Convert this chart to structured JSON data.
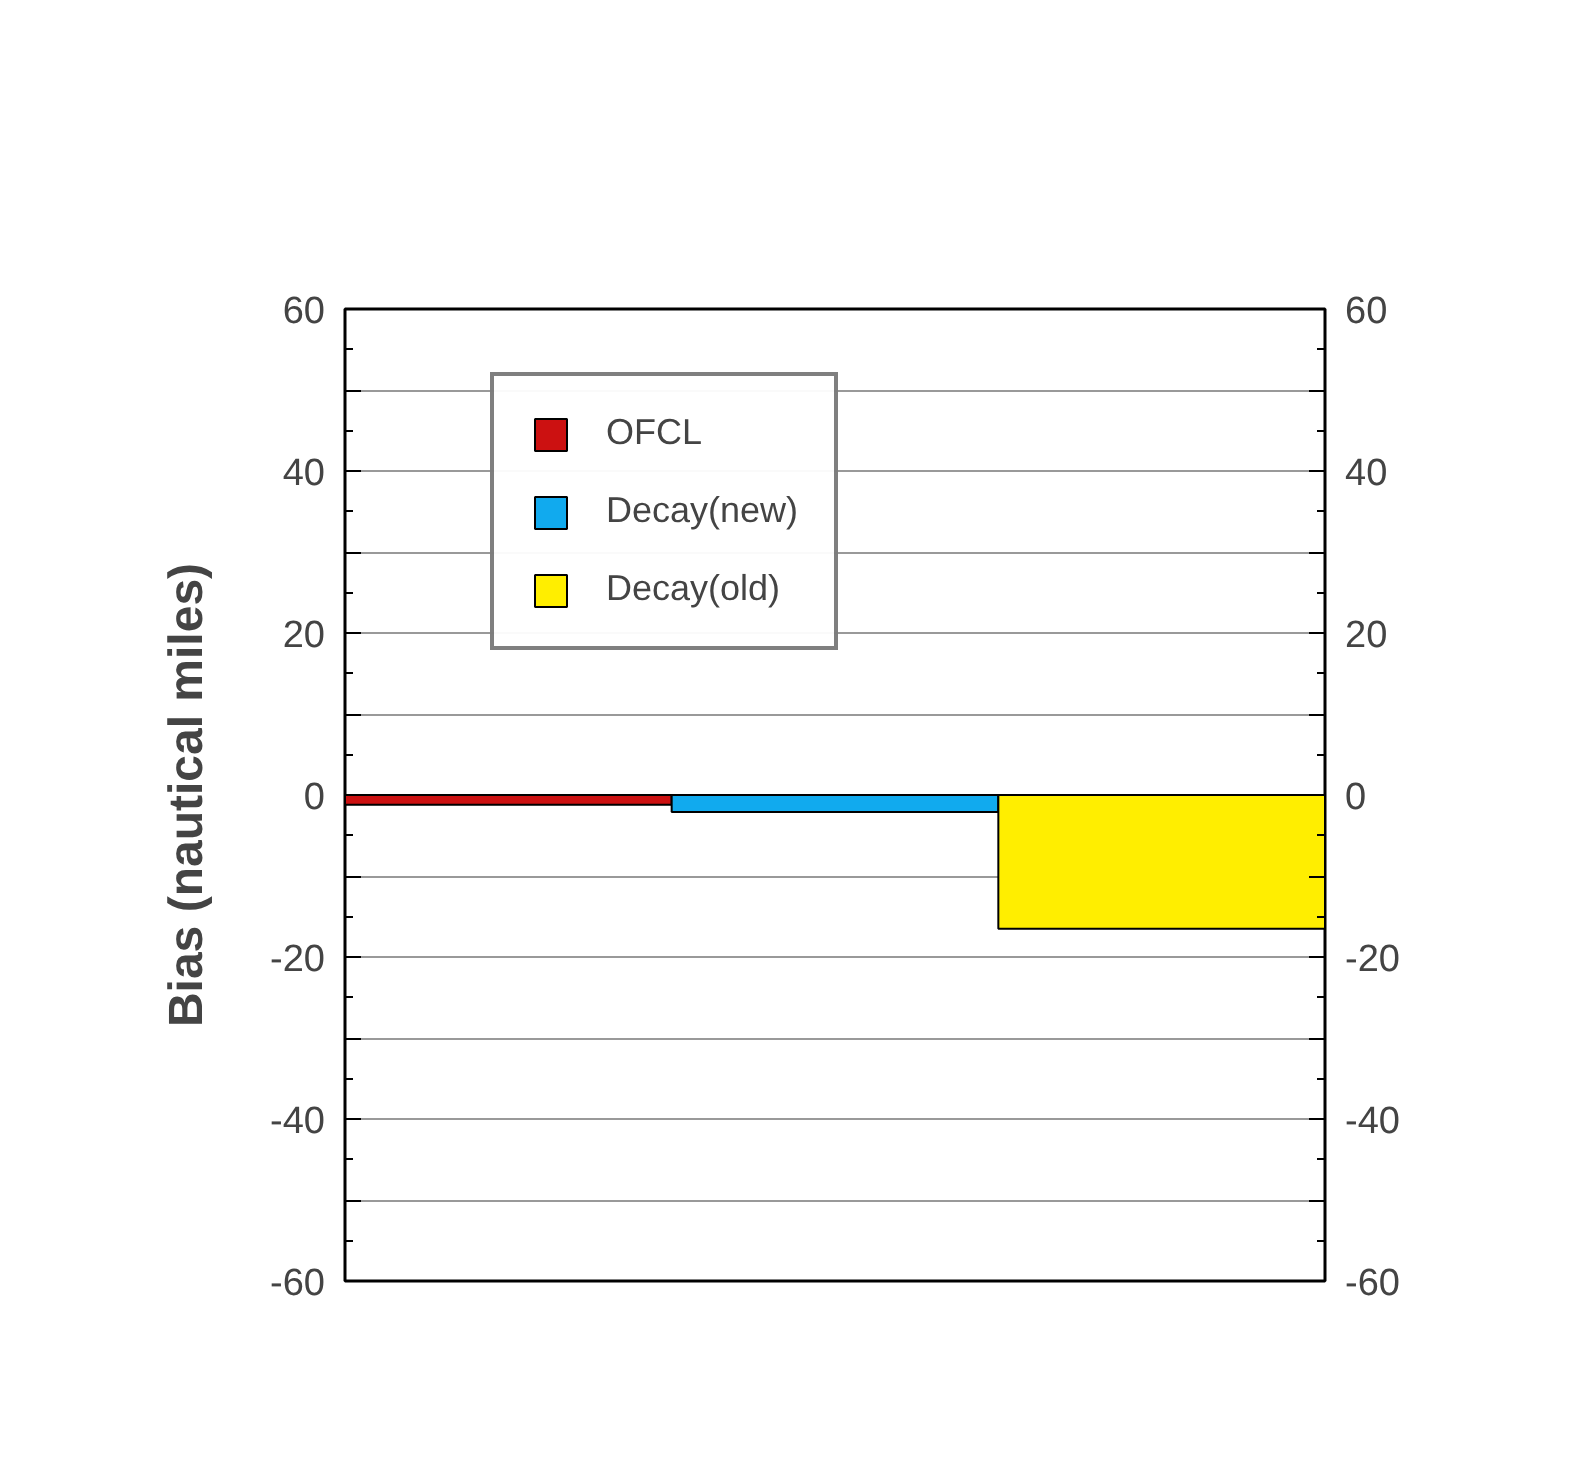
{
  "chart_data": {
    "type": "bar",
    "ylabel": "Bias (nautical miles)",
    "categories": [
      null,
      null,
      null
    ],
    "series": [
      {
        "name": "OFCL",
        "color": "#cc1111",
        "values": [
          -1.2,
          null,
          null
        ]
      },
      {
        "name": "Decay(new)",
        "color": "#11aaee",
        "values": [
          null,
          -2.1,
          null
        ]
      },
      {
        "name": "Decay(old)",
        "color": "#ffee00",
        "values": [
          null,
          null,
          -16.5
        ]
      }
    ],
    "ylim": [
      -60,
      60
    ],
    "yticks": [
      -60,
      {
        "value": -50,
        "label": null
      },
      -40,
      {
        "value": -30,
        "label": null
      },
      -20,
      {
        "value": -10,
        "label": null
      },
      0,
      {
        "value": 10,
        "label": null
      },
      20,
      {
        "value": 30,
        "label": null
      },
      40,
      {
        "value": 50,
        "label": null
      },
      60
    ],
    "y2lim": [
      -60,
      60
    ],
    "y2ticks": [
      -60,
      {
        "value": -50,
        "label": null
      },
      -40,
      {
        "value": -30,
        "label": null
      },
      -20,
      {
        "value": -10,
        "label": null
      },
      0,
      {
        "value": 10,
        "label": null
      },
      20,
      {
        "value": 30,
        "label": null
      },
      40,
      {
        "value": 50,
        "label": null
      },
      60
    ],
    "grid": "y",
    "legend": "top left"
  }
}
